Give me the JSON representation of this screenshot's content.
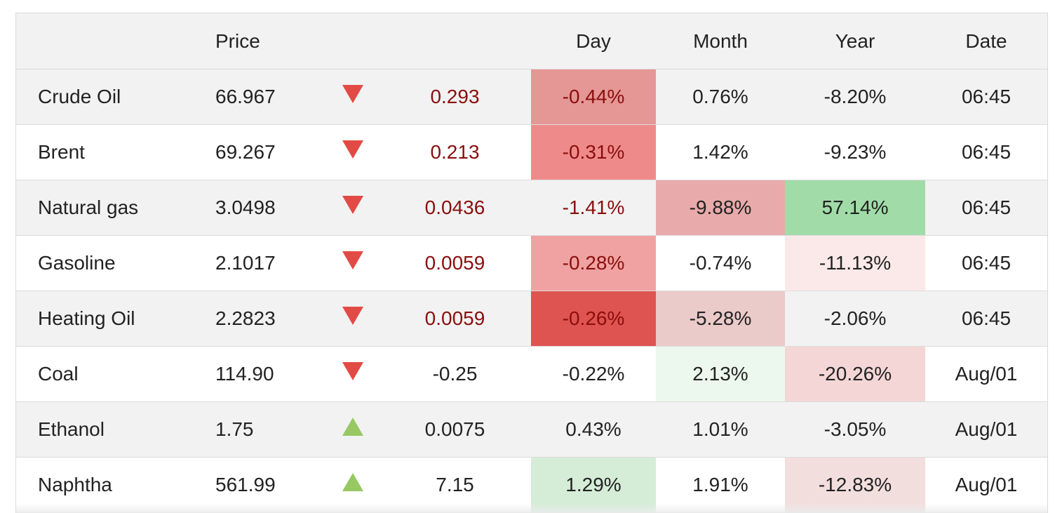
{
  "header": {
    "name": "",
    "price": "Price",
    "arrow": "",
    "change": "",
    "day": "Day",
    "month": "Month",
    "year": "Year",
    "date": "Date"
  },
  "colors": {
    "down_arrow": "#e24b45",
    "up_arrow": "#97c864",
    "negative_text": "#8b0e0e"
  },
  "rows": [
    {
      "name": "Crude Oil",
      "price": "66.967",
      "direction": "down",
      "change": "0.293",
      "day": "-0.44%",
      "month": "0.76%",
      "year": "-8.20%",
      "date": "06:45",
      "bg": {
        "day": "#e49795",
        "month": "",
        "year": ""
      }
    },
    {
      "name": "Brent",
      "price": "69.267",
      "direction": "down",
      "change": "0.213",
      "day": "-0.31%",
      "month": "1.42%",
      "year": "-9.23%",
      "date": "06:45",
      "bg": {
        "day": "#ee8b8a",
        "month": "",
        "year": ""
      }
    },
    {
      "name": "Natural gas",
      "price": "3.0498",
      "direction": "down",
      "change": "0.0436",
      "day": "-1.41%",
      "month": "-9.88%",
      "year": "57.14%",
      "date": "06:45",
      "bg": {
        "day": "",
        "month": "#e8aaaa",
        "year": "#a1dca8"
      }
    },
    {
      "name": "Gasoline",
      "price": "2.1017",
      "direction": "down",
      "change": "0.0059",
      "day": "-0.28%",
      "month": "-0.74%",
      "year": "-11.13%",
      "date": "06:45",
      "bg": {
        "day": "#f0a2a2",
        "month": "",
        "year": "#fbe9e9"
      }
    },
    {
      "name": "Heating Oil",
      "price": "2.2823",
      "direction": "down",
      "change": "0.0059",
      "day": "-0.26%",
      "month": "-5.28%",
      "year": "-2.06%",
      "date": "06:45",
      "bg": {
        "day": "#de5450",
        "month": "#ebcaca",
        "year": ""
      }
    },
    {
      "name": "Coal",
      "price": "114.90",
      "direction": "down",
      "change": "-0.25",
      "day": "-0.22%",
      "month": "2.13%",
      "year": "-20.26%",
      "date": "Aug/01",
      "bg": {
        "day": "",
        "month": "#ecf8ed",
        "year": "#f5d6d6"
      }
    },
    {
      "name": "Ethanol",
      "price": "1.75",
      "direction": "up",
      "change": "0.0075",
      "day": "0.43%",
      "month": "1.01%",
      "year": "-3.05%",
      "date": "Aug/01",
      "bg": {
        "day": "",
        "month": "",
        "year": ""
      }
    },
    {
      "name": "Naphtha",
      "price": "561.99",
      "direction": "up",
      "change": "7.15",
      "day": "1.29%",
      "month": "1.91%",
      "year": "-12.83%",
      "date": "Aug/01",
      "bg": {
        "day": "#d5edd7",
        "month": "",
        "year": "#f3dede"
      }
    }
  ]
}
